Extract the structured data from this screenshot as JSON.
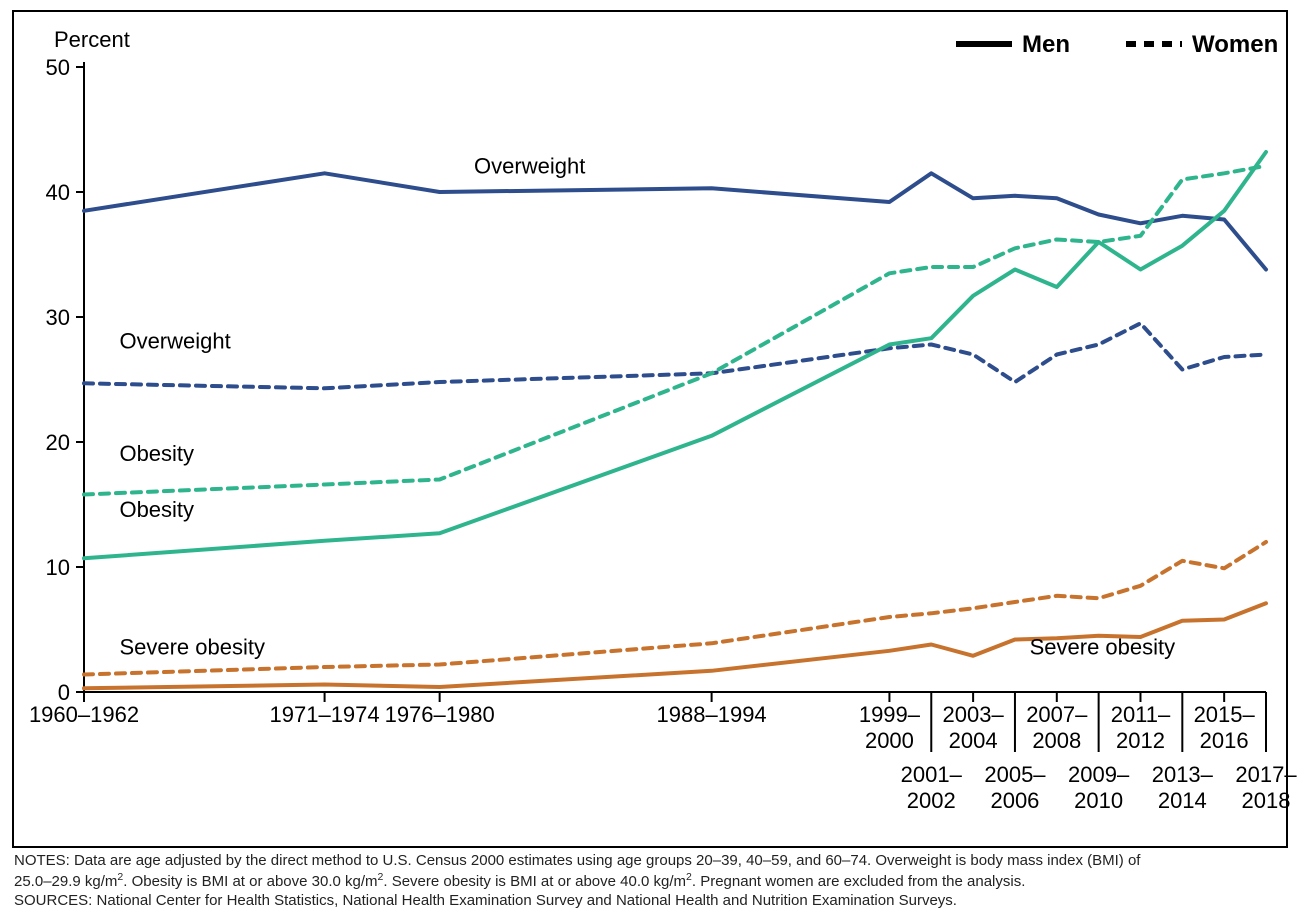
{
  "chart": {
    "type": "line",
    "background_color": "#ffffff",
    "border_color": "#000000",
    "y_axis": {
      "label": "Percent",
      "min": 0,
      "max": 50,
      "tick_step": 10,
      "ticks": [
        0,
        10,
        20,
        30,
        40,
        50
      ],
      "label_fontsize": 22,
      "tick_fontsize": 22,
      "axis_color": "#000000",
      "tick_color": "#000000"
    },
    "x_axis": {
      "labels_top": [
        "1960–1962",
        "1971–1974",
        "1976–1980",
        "1988–1994",
        "1999–2000",
        "2003–2004",
        "2007–2008",
        "2011–2012",
        "2015–2016"
      ],
      "labels_bottom": [
        "2001–2002",
        "2005–2006",
        "2009–2010",
        "2013–2014",
        "2017–2018"
      ],
      "tick_fontsize": 22,
      "axis_color": "#000000"
    },
    "time_points": [
      "1960–1962",
      "1971–1974",
      "1976–1980",
      "1988–1994",
      "1999–2000",
      "2001–2002",
      "2003–2004",
      "2005–2006",
      "2007–2008",
      "2009–2010",
      "2011–2012",
      "2013–2014",
      "2015–2016",
      "2017–2018"
    ],
    "legend": {
      "items": [
        {
          "label": "Men",
          "line": "solid",
          "color": "#000000"
        },
        {
          "label": "Women",
          "line": "dashed",
          "color": "#000000"
        }
      ],
      "fontsize": 24,
      "font_weight": "bold",
      "position": "top-right"
    },
    "series": [
      {
        "id": "overweight_men",
        "label": "Overweight",
        "color": "#2e4d8c",
        "line": "solid",
        "width": 4,
        "dash": null,
        "values": [
          38.5,
          41.5,
          40.0,
          40.3,
          39.2,
          41.5,
          39.5,
          39.7,
          39.5,
          38.2,
          37.5,
          38.1,
          37.8,
          33.8
        ],
        "label_pos": {
          "x": 0.33,
          "y": 41.5
        }
      },
      {
        "id": "overweight_women",
        "label": "Overweight",
        "color": "#2e4d8c",
        "line": "dashed",
        "width": 4,
        "dash": "9,7",
        "values": [
          24.7,
          24.3,
          24.8,
          25.5,
          27.5,
          27.8,
          27.0,
          24.8,
          27.0,
          27.8,
          29.5,
          25.8,
          26.8,
          27.0
        ],
        "label_pos": {
          "x": 0.03,
          "y": 27.5
        }
      },
      {
        "id": "obesity_men",
        "label": "Obesity",
        "color": "#2fb58d",
        "line": "solid",
        "width": 4,
        "dash": null,
        "values": [
          10.7,
          12.1,
          12.7,
          20.5,
          27.8,
          28.3,
          31.7,
          33.8,
          32.4,
          36.0,
          33.8,
          35.7,
          38.5,
          43.2
        ],
        "label_pos": {
          "x": 0.03,
          "y": 14.0
        }
      },
      {
        "id": "obesity_women",
        "label": "Obesity",
        "color": "#2fb58d",
        "line": "dashed",
        "width": 4,
        "dash": "9,7",
        "values": [
          15.8,
          16.6,
          17.0,
          25.5,
          33.5,
          34.0,
          34.0,
          35.5,
          36.2,
          36.0,
          36.5,
          41.0,
          41.5,
          42.1
        ],
        "label_pos": {
          "x": 0.03,
          "y": 18.5
        }
      },
      {
        "id": "severe_men",
        "label": "Severe obesity",
        "color": "#c7732d",
        "line": "solid",
        "width": 4,
        "dash": null,
        "values": [
          0.3,
          0.6,
          0.4,
          1.7,
          3.3,
          3.8,
          2.9,
          4.2,
          4.3,
          4.5,
          4.4,
          5.7,
          5.8,
          7.1
        ],
        "label_pos": {
          "x": 0.8,
          "y": 3.0
        }
      },
      {
        "id": "severe_women",
        "label": "Severe obesity",
        "color": "#c7732d",
        "line": "dashed",
        "width": 4,
        "dash": "9,7",
        "values": [
          1.4,
          2.0,
          2.2,
          3.9,
          6.0,
          6.3,
          6.7,
          7.2,
          7.7,
          7.5,
          8.5,
          10.5,
          9.9,
          12.0
        ],
        "label_pos": {
          "x": 0.03,
          "y": 3.0
        }
      }
    ],
    "line_label_fontsize": 22,
    "line_label_color": "#000000"
  },
  "notes": {
    "line1": "NOTES: Data are age adjusted by the direct method to U.S. Census 2000 estimates using age groups 20–39, 40–59, and 60–74. Overweight is body mass index (BMI) of",
    "line2_prefix": "25.0–29.9 kg/m",
    "line2_mid": ". Obesity is BMI at or above 30.0 kg/m",
    "line2_mid2": ". Severe obesity is BMI at or above 40.0 kg/m",
    "line2_suffix": ". Pregnant women are excluded from the analysis.",
    "line3": "SOURCES: National Center for Health Statistics, National Health Examination Survey and National Health and Nutrition Examination Surveys.",
    "sup": "2",
    "fontsize": 15,
    "color": "#222222"
  }
}
